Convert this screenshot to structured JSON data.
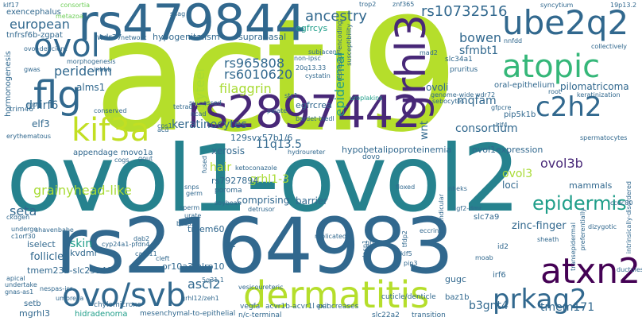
{
  "words": {
    "actl9": "actl9",
    "ovo1_ovol2": "ovol1-ovol2",
    "rs2164983": "rs2164983",
    "rs479844": "rs479844",
    "rs2897442": "rs2897442",
    "dermatitis": "dermatitis",
    "ovo_svb": "ovo/svb",
    "atxn2": "atxn2",
    "prkag2": "prkag2",
    "ube2q2": "ube2q2",
    "atopic": "atopic",
    "c2h2": "c2h2",
    "grhl3": "grhl3",
    "flg": "flg",
    "ovol": "ovol",
    "kif3a": "kif3a",
    "rs10732516": "rs10732516",
    "epidermis": "epidermis",
    "ancestry": "ancestry",
    "european": "european",
    "periderm": "periderm",
    "exencephalus": "exencephalus",
    "tnfrsf6b_zgpat": "tnfrsf6b-zgpat",
    "hypogenitalism": "hypogenitalism",
    "suprabasal": "suprabasal",
    "wdr37": "wdr37",
    "rs965808": "rs965808",
    "rs6010620": "rs6010620",
    "filaggrin": "filaggrin",
    "glyteer": "glyteer",
    "keratinocytes": "keratinocytes",
    "bowen": "bowen",
    "sfmbt1": "sfmbt1",
    "epidermal": "epidermal",
    "ovoli": "ovoli",
    "mqfam": "mqfam",
    "consortium": "consortium",
    "pilomatricoma": "pilomatricoma",
    "oral_epithelium": "oral-epithelium",
    "dnirf6": "dnirf6",
    "elf3": "elf3",
    "alms1": "alms1",
    "egfrcys": "egfrcys",
    "egfrcrea": "egfrcrea",
    "n11q13_5": "11q13.5",
    "ovol3b": "ovol3b",
    "grainyhead_like": "grainyhead-like",
    "grhl1_3": "grhl1-3",
    "seta": "seta",
    "hair": "hair",
    "xerosis": "xerosis",
    "appendage": "appendage",
    "movo1a": "movo1a",
    "rs129svx57b1_6": "129svx57b1/6",
    "ovol1expression": "ovol1expression",
    "hypobetalipoproteinemia": "hypobetalipoproteinemia",
    "ovol3": "ovol3",
    "loci": "loci",
    "mammals": "mammals",
    "glb1": "glb1",
    "comprising": "comprising",
    "rs7927894": "rs7927894",
    "barrier": "barrier",
    "wnt": "wnt",
    "zinc_finger": "zinc-finger",
    "skin": "skin",
    "kvdmr": "kvdmr",
    "tmem60": "tmem60",
    "alcf": "alcf",
    "follicles": "follicles",
    "isaquene": "iselect",
    "ascl2": "ascl2",
    "tmem232": "tmem232-slc25a46",
    "or10a3": "or10a3-nlrp10",
    "id1": "id1",
    "icogs": "icogs",
    "b3gnt4": "b3gnt4",
    "tmem171": "tmem171",
    "irf6": "irf6",
    "gugc": "gugc",
    "setb": "setb",
    "mgrhl3": "mgrhl3",
    "hidradenoma": "hidradenoma",
    "mesenchymal": "mesenchymal-to-epithelial",
    "nc_terminal": "n/c-terminal",
    "pancreases": "pancreases",
    "slc22a2": "slc22a2",
    "transition": "transition",
    "cuticle": "cuticle/denticle",
    "chylomicrons": "chylomicrons",
    "vegfa": "vegfa",
    "acvr1b": "acvr1b-acvr1l",
    "exit": "exit",
    "bazib": "baz1b",
    "trim46": "trim46",
    "hormonogenesis": "hormonogenesis",
    "undergo": "undergo",
    "c1orf30": "c1orf30",
    "ckdgen": "ckdgen",
    "apical": "apical",
    "undertake": "undertake",
    "gnas_as1": "gnas-as1",
    "erythematous": "erythematous",
    "ovol_deficient": "ovol-deficient",
    "morphogenesis": "morphogenesis",
    "network": "network",
    "inhbb": "inhbb",
    "gwas": "gwas",
    "mob": "mob",
    "klf17": "klf17",
    "consortia": "consortia",
    "snag": "snag",
    "metazoa": "metazoa",
    "trop2": "trop2",
    "znf365": "znf365",
    "syncytium": "syncytium",
    "n19p13_2": "19p13.2",
    "collectively": "collectively",
    "mad2": "mad2",
    "pruritus": "pruritus",
    "slc34a1": "slc34a1",
    "susceptibility": "susceptibility",
    "repressor_encoding": "repressor-encoding",
    "subjacent": "subjacent",
    "non_ipsc": "non-ipsc",
    "cystatin": "cystatin",
    "n20q13_33": "20q13.33",
    "uroplakins": "uroplakins",
    "genome_wide": "genome-wide",
    "sebocytes": "sebocytes",
    "root": "root",
    "keratinization": "keratinization",
    "pip5k1b": "pip5k1b",
    "gfpcre": "gfpcre",
    "spermatocytes": "spermatocytes",
    "bardet_biedl": "bardet-biedl",
    "palate": "palate",
    "tetrad": "tetrad",
    "surpassed": "surpassed",
    "conserved": "conserved",
    "cps1": "cps1",
    "ncad": "ncad",
    "stc1": "stc1",
    "hydroureter": "hydroureter",
    "dovo": "dovo",
    "cogs": "cogs",
    "gout": "gout",
    "germ": "germ",
    "snps": "snps",
    "sperm": "sperm",
    "urate": "urate",
    "soybean": "soybean",
    "poroma": "poroma",
    "bcas3": "bcas3",
    "fused": "fused",
    "floxed": "floxed",
    "perpendicular": "perpendicular",
    "nheks": "nheks",
    "ecrine": "eccrine",
    "grna": "grna",
    "transepidermal": "transepidermal",
    "preferentially": "preferentially",
    "intrinsically_disordered": "intrinsically-disordered",
    "ccdc80": "ccdc80",
    "sheath": "sheath",
    "dizygotic": "dizygotic",
    "dab2": "dab2",
    "cleft": "cleft",
    "card11": "card11",
    "cyp24a1": "cyp24a1-pfdn4",
    "vesicoureteric": "vesicoureteric",
    "replicated": "replicated",
    "moab": "moab",
    "slc7a9": "slc7a9",
    "tfdp2": "tfdp2",
    "ductules": "ductules",
    "klf5": "klf5",
    "pip3": "pip3",
    "id2": "id2",
    "umbrella": "umbrella",
    "grhl12": "grhl12/zeh1",
    "igf2_dmr": "igf2-dmr",
    "nespas": "nespas-icr",
    "detrusor": "detrusor",
    "ketoconazole": "ketoconazole",
    "lasp1": "lasp1",
    "n5q31_1": "5q31.1",
    "shavenbabe": "shavenbabe",
    "acd": "acd",
    "klf4": "klf4",
    "wdr72": "wdr72",
    "nnfdd": "nnfdd"
  },
  "colors": {
    "lime": "#b5de2b",
    "blue": "#31688e",
    "teal": "#1f9e89",
    "purple": "#482878",
    "dark": "#440154"
  }
}
